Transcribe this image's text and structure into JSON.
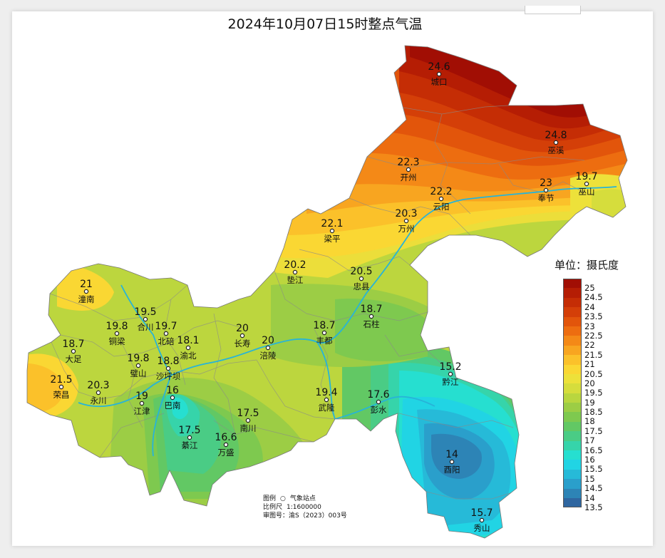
{
  "title": "2024年10月07日15时整点气温",
  "legend": {
    "title": "单位：摄氏度",
    "ticks": [
      "25",
      "24.5",
      "24",
      "23.5",
      "23",
      "22.5",
      "22",
      "21.5",
      "21",
      "20.5",
      "20",
      "19.5",
      "19",
      "18.5",
      "18",
      "17.5",
      "17",
      "16.5",
      "16",
      "15.5",
      "15",
      "14.5",
      "14",
      "13.5"
    ],
    "colors": [
      "#a10e04",
      "#b51d04",
      "#c52d05",
      "#d43f08",
      "#e2550b",
      "#ed6d10",
      "#f48917",
      "#f8a520",
      "#fbc12a",
      "#fad733",
      "#ede13a",
      "#d6dd3c",
      "#b9d63f",
      "#9ccd45",
      "#7ec94f",
      "#62c864",
      "#4acc85",
      "#36d4aa",
      "#26dfd0",
      "#21d4e4",
      "#26bad8",
      "#2a9fcb",
      "#2d84b6",
      "#2f66a0"
    ]
  },
  "stations": [
    {
      "name": "城口",
      "value": "24.6"
    },
    {
      "name": "巫溪",
      "value": "24.8"
    },
    {
      "name": "开州",
      "value": "22.3"
    },
    {
      "name": "云阳",
      "value": "22.2"
    },
    {
      "name": "奉节",
      "value": "23"
    },
    {
      "name": "巫山",
      "value": "19.7"
    },
    {
      "name": "梁平",
      "value": "22.1"
    },
    {
      "name": "万州",
      "value": "20.3"
    },
    {
      "name": "垫江",
      "value": "20.2"
    },
    {
      "name": "忠县",
      "value": "20.5"
    },
    {
      "name": "潼南",
      "value": "21"
    },
    {
      "name": "合川",
      "value": "19.5"
    },
    {
      "name": "铜梁",
      "value": "19.8"
    },
    {
      "name": "北碚",
      "value": "19.7"
    },
    {
      "name": "渝北",
      "value": "18.1"
    },
    {
      "name": "大足",
      "value": "18.7"
    },
    {
      "name": "璧山",
      "value": "19.8"
    },
    {
      "name": "沙坪坝",
      "value": "18.8"
    },
    {
      "name": "长寿",
      "value": "20"
    },
    {
      "name": "涪陵",
      "value": "20"
    },
    {
      "name": "丰都",
      "value": "18.7"
    },
    {
      "name": "石柱",
      "value": "18.7"
    },
    {
      "name": "荣昌",
      "value": "21.5"
    },
    {
      "name": "永川",
      "value": "20.3"
    },
    {
      "name": "江津",
      "value": "19"
    },
    {
      "name": "巴南",
      "value": "16"
    },
    {
      "name": "南川",
      "value": "17.5"
    },
    {
      "name": "綦江",
      "value": "17.5"
    },
    {
      "name": "万盛",
      "value": "16.6"
    },
    {
      "name": "武隆",
      "value": "19.4"
    },
    {
      "name": "彭水",
      "value": "17.6"
    },
    {
      "name": "黔江",
      "value": "15.2"
    },
    {
      "name": "酉阳",
      "value": "14"
    },
    {
      "name": "秀山",
      "value": "15.7"
    }
  ],
  "footnote": {
    "legend_label": "图例",
    "legend_item": "气象站点",
    "scale_label": "比例尺",
    "scale_value": "1:1600000",
    "map_no": "审图号：渝S（2023）003号"
  }
}
